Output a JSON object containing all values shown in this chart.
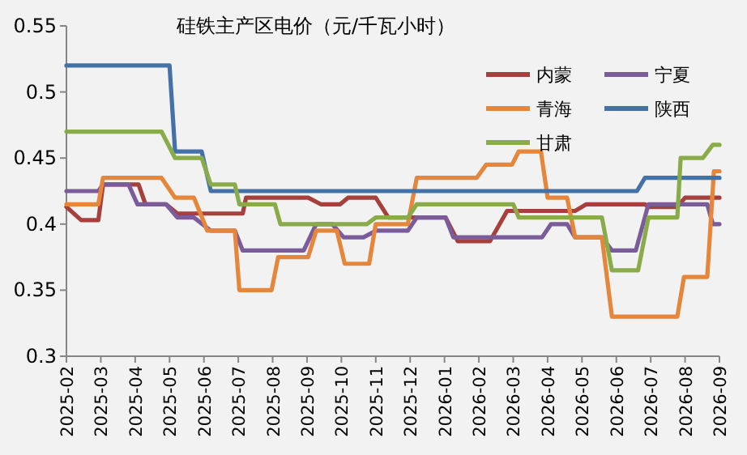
{
  "chart_data": {
    "type": "line",
    "title": "硅铁主产区电价（元/千瓦小时）",
    "xlim": [
      "2025-02-01",
      "2026-09-01"
    ],
    "xticks": [
      "2025-02",
      "2025-03",
      "2025-04",
      "2025-05",
      "2025-06",
      "2025-07",
      "2025-08",
      "2025-09",
      "2025-10",
      "2025-11",
      "2025-12",
      "2026-01",
      "2026-02",
      "2026-03",
      "2026-04",
      "2026-05",
      "2026-06",
      "2026-07",
      "2026-08",
      "2026-09"
    ],
    "ylim": [
      0.3,
      0.55
    ],
    "yticks": [
      0.3,
      0.35,
      0.4,
      0.45,
      0.5,
      0.55
    ],
    "grid": false,
    "legend": "top right",
    "marker": "none",
    "line_style": "solid",
    "series": [
      {
        "name": "内蒙",
        "color": "#a5403d",
        "x": [
          "2025-02-01",
          "2025-02-13",
          "2025-02-27",
          "2025-03-03",
          "2025-04-04",
          "2025-04-10",
          "2025-04-28",
          "2025-05-08",
          "2025-07-05",
          "2025-07-08",
          "2025-09-02",
          "2025-09-13",
          "2025-09-30",
          "2025-10-07",
          "2025-11-01",
          "2025-11-12",
          "2026-01-02",
          "2026-01-13",
          "2026-02-10",
          "2026-02-24",
          "2026-04-25",
          "2026-05-05",
          "2026-06-26",
          "2026-06-29",
          "2026-07-25",
          "2026-08-01",
          "2026-09-01"
        ],
        "values": [
          0.413,
          0.403,
          0.403,
          0.43,
          0.43,
          0.415,
          0.415,
          0.408,
          0.408,
          0.42,
          0.42,
          0.415,
          0.415,
          0.42,
          0.42,
          0.405,
          0.405,
          0.387,
          0.387,
          0.41,
          0.41,
          0.415,
          0.415,
          0.413,
          0.413,
          0.42,
          0.42
        ]
      },
      {
        "name": "宁夏",
        "color": "#7a5c9a",
        "x": [
          "2025-02-01",
          "2025-02-27",
          "2025-03-03",
          "2025-03-26",
          "2025-04-03",
          "2025-04-28",
          "2025-05-08",
          "2025-05-23",
          "2025-06-07",
          "2025-06-28",
          "2025-07-05",
          "2025-08-29",
          "2025-09-09",
          "2025-09-23",
          "2025-10-03",
          "2025-10-21",
          "2025-11-01",
          "2025-11-29",
          "2025-12-07",
          "2026-01-02",
          "2026-01-09",
          "2026-03-27",
          "2026-04-04",
          "2026-04-18",
          "2026-04-25",
          "2026-05-19",
          "2026-05-28",
          "2026-06-18",
          "2026-06-29",
          "2026-08-21",
          "2026-08-26",
          "2026-09-01"
        ],
        "values": [
          0.425,
          0.425,
          0.43,
          0.43,
          0.415,
          0.415,
          0.405,
          0.405,
          0.395,
          0.395,
          0.38,
          0.38,
          0.4,
          0.4,
          0.39,
          0.39,
          0.395,
          0.395,
          0.405,
          0.405,
          0.39,
          0.39,
          0.4,
          0.4,
          0.39,
          0.39,
          0.38,
          0.38,
          0.415,
          0.415,
          0.4,
          0.4
        ]
      },
      {
        "name": "青海",
        "color": "#e5863b",
        "x": [
          "2025-02-01",
          "2025-02-27",
          "2025-03-03",
          "2025-04-24",
          "2025-05-06",
          "2025-05-23",
          "2025-06-04",
          "2025-06-28",
          "2025-07-02",
          "2025-07-31",
          "2025-08-06",
          "2025-09-02",
          "2025-09-09",
          "2025-09-27",
          "2025-10-04",
          "2025-10-26",
          "2025-11-01",
          "2025-11-29",
          "2025-12-07",
          "2026-01-30",
          "2026-02-07",
          "2026-02-28",
          "2026-03-06",
          "2026-03-26",
          "2026-04-01",
          "2026-04-18",
          "2026-04-25",
          "2026-05-19",
          "2026-05-28",
          "2026-07-25",
          "2026-07-31",
          "2026-08-21",
          "2026-08-27",
          "2026-09-01"
        ],
        "values": [
          0.415,
          0.415,
          0.435,
          0.435,
          0.42,
          0.42,
          0.395,
          0.395,
          0.35,
          0.35,
          0.375,
          0.375,
          0.395,
          0.395,
          0.37,
          0.37,
          0.4,
          0.4,
          0.435,
          0.435,
          0.445,
          0.445,
          0.455,
          0.455,
          0.42,
          0.42,
          0.39,
          0.39,
          0.33,
          0.33,
          0.36,
          0.36,
          0.44,
          0.44
        ]
      },
      {
        "name": "陕西",
        "color": "#4472a8",
        "x": [
          "2025-02-01",
          "2025-05-01",
          "2025-05-06",
          "2025-05-30",
          "2025-06-07",
          "2026-06-19",
          "2026-06-26",
          "2026-09-01"
        ],
        "values": [
          0.52,
          0.52,
          0.455,
          0.455,
          0.425,
          0.425,
          0.435,
          0.435
        ]
      },
      {
        "name": "甘肃",
        "color": "#8aab4a",
        "x": [
          "2025-02-01",
          "2025-04-24",
          "2025-05-06",
          "2025-05-30",
          "2025-06-07",
          "2025-06-28",
          "2025-07-02",
          "2025-08-03",
          "2025-08-08",
          "2025-10-24",
          "2025-11-01",
          "2025-11-29",
          "2025-12-07",
          "2026-03-01",
          "2026-03-06",
          "2026-05-19",
          "2026-05-28",
          "2026-06-20",
          "2026-06-29",
          "2026-07-25",
          "2026-07-28",
          "2026-08-17",
          "2026-08-26",
          "2026-09-01"
        ],
        "values": [
          0.47,
          0.47,
          0.45,
          0.45,
          0.43,
          0.43,
          0.415,
          0.415,
          0.4,
          0.4,
          0.405,
          0.405,
          0.415,
          0.415,
          0.405,
          0.405,
          0.365,
          0.365,
          0.405,
          0.405,
          0.45,
          0.45,
          0.46,
          0.46
        ]
      }
    ]
  }
}
